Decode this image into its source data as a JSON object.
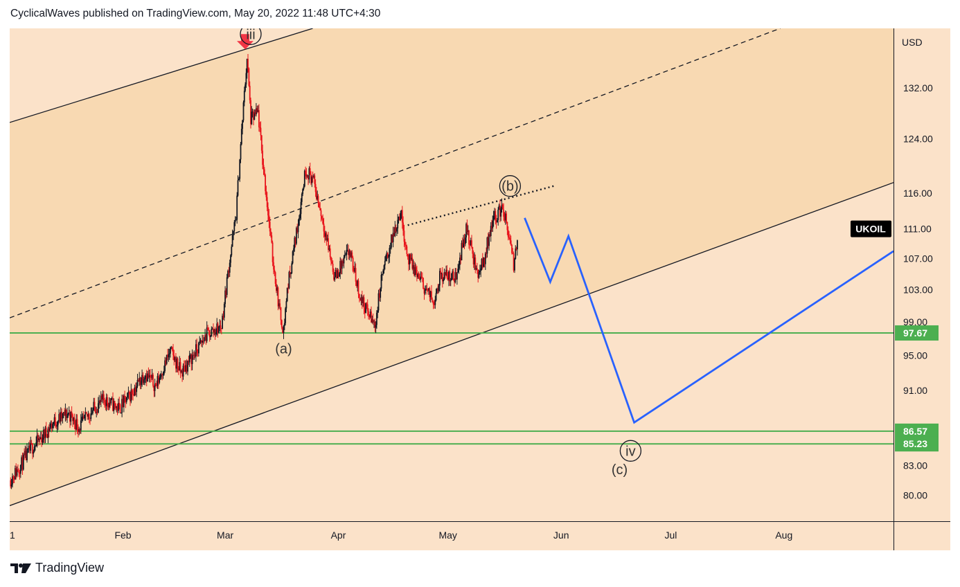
{
  "header": {
    "title": "CyclicalWaves published on TradingView.com, May 20, 2022 11:48 UTC+4:30"
  },
  "footer": {
    "brand": "TradingView"
  },
  "colors": {
    "background": "#fbe2c9",
    "channel_fill": "#f8d9b2",
    "candle_up": "#131722",
    "candle_down": "#e8141c",
    "support_line": "#4caf50",
    "projection": "#2962ff",
    "symbol_badge": "#000000",
    "marker_arrow": "#f23645"
  },
  "icons": {
    "logo": "tradingview-logo-icon",
    "marker": "down-arrow-marker-icon"
  },
  "chart_data": {
    "type": "candlestick",
    "symbol": "UKOIL",
    "currency": "USD",
    "price_ticks": [
      132.0,
      124.0,
      116.0,
      111.0,
      107.0,
      103.0,
      99.0,
      95.0,
      91.0,
      83.0,
      80.0
    ],
    "price_tick_labels": [
      "132.00",
      "124.00",
      "116.00",
      "111.00",
      "107.00",
      "103.00",
      "99.00",
      "95.00",
      "91.00",
      "83.00",
      "80.00"
    ],
    "time_ticks": [
      "1",
      "Feb",
      "Mar",
      "Apr",
      "May",
      "Jun",
      "Jul",
      "Aug"
    ],
    "x_range": [
      "2022-01-01",
      "2022-08-31"
    ],
    "y_range": [
      77.5,
      142
    ],
    "log_scale": true,
    "grid": false,
    "horizontal_levels": [
      {
        "price": 97.67,
        "label": "97.67"
      },
      {
        "price": 86.57,
        "label": "86.57"
      },
      {
        "price": 85.23,
        "label": "85.23"
      }
    ],
    "last_price_label": "UKOIL",
    "last_price": 111.0,
    "price_path": [
      [
        "2022-01-01",
        81.5
      ],
      [
        "2022-01-04",
        83.0
      ],
      [
        "2022-01-07",
        84.8
      ],
      [
        "2022-01-10",
        86.0
      ],
      [
        "2022-01-13",
        87.5
      ],
      [
        "2022-01-17",
        88.5
      ],
      [
        "2022-01-20",
        87.0
      ],
      [
        "2022-01-24",
        89.0
      ],
      [
        "2022-01-27",
        90.0
      ],
      [
        "2022-01-31",
        89.0
      ],
      [
        "2022-02-03",
        90.5
      ],
      [
        "2022-02-07",
        93.0
      ],
      [
        "2022-02-10",
        91.5
      ],
      [
        "2022-02-14",
        95.5
      ],
      [
        "2022-02-17",
        93.0
      ],
      [
        "2022-02-21",
        95.5
      ],
      [
        "2022-02-24",
        97.5
      ],
      [
        "2022-02-28",
        98.5
      ],
      [
        "2022-03-02",
        106.0
      ],
      [
        "2022-03-04",
        113.0
      ],
      [
        "2022-03-07",
        137.0
      ],
      [
        "2022-03-08",
        127.0
      ],
      [
        "2022-03-10",
        128.0
      ],
      [
        "2022-03-11",
        122.0
      ],
      [
        "2022-03-14",
        107.0
      ],
      [
        "2022-03-16",
        100.0
      ],
      [
        "2022-03-17",
        98.0
      ],
      [
        "2022-03-18",
        103.0
      ],
      [
        "2022-03-21",
        112.0
      ],
      [
        "2022-03-23",
        119.5
      ],
      [
        "2022-03-25",
        118.0
      ],
      [
        "2022-03-28",
        111.5
      ],
      [
        "2022-03-31",
        104.5
      ],
      [
        "2022-04-04",
        108.0
      ],
      [
        "2022-04-07",
        102.0
      ],
      [
        "2022-04-11",
        98.5
      ],
      [
        "2022-04-13",
        105.0
      ],
      [
        "2022-04-18",
        113.5
      ],
      [
        "2022-04-20",
        107.0
      ],
      [
        "2022-04-25",
        103.0
      ],
      [
        "2022-04-27",
        101.5
      ],
      [
        "2022-04-29",
        105.0
      ],
      [
        "2022-05-03",
        104.5
      ],
      [
        "2022-05-06",
        111.0
      ],
      [
        "2022-05-09",
        105.0
      ],
      [
        "2022-05-11",
        107.0
      ],
      [
        "2022-05-13",
        112.0
      ],
      [
        "2022-05-16",
        114.0
      ],
      [
        "2022-05-18",
        109.0
      ],
      [
        "2022-05-19",
        106.0
      ],
      [
        "2022-05-20",
        110.0
      ]
    ],
    "channel": {
      "upper_line": [
        [
          "2022-01-01",
          126.5
        ],
        [
          "2022-03-25",
          142.0
        ]
      ],
      "midline_dashed": [
        [
          "2022-01-01",
          99.5
        ],
        [
          "2022-07-31",
          142.0
        ]
      ],
      "lower_line": [
        [
          "2022-01-01",
          79.0
        ],
        [
          "2022-08-31",
          117.5
        ]
      ]
    },
    "b_trendline_dotted": [
      [
        "2022-04-20",
        111.5
      ],
      [
        "2022-05-30",
        117.0
      ]
    ],
    "projection_path": [
      [
        "2022-05-22",
        112.5
      ],
      [
        "2022-05-29",
        104.0
      ],
      [
        "2022-06-03",
        110.0
      ],
      [
        "2022-06-21",
        87.5
      ],
      [
        "2022-08-31",
        108.0
      ]
    ],
    "wave_labels": [
      {
        "text": "iii",
        "date": "2022-03-08",
        "price": 141.0,
        "circled": true
      },
      {
        "text": "(a)",
        "date": "2022-03-17",
        "price": 95.8,
        "circled": false
      },
      {
        "text": "(b)",
        "date": "2022-05-18",
        "price": 117.0,
        "circled": true
      },
      {
        "text": "iv",
        "date": "2022-06-20",
        "price": 84.5,
        "circled": true
      },
      {
        "text": "(c)",
        "date": "2022-06-17",
        "price": 82.6,
        "circled": false
      }
    ]
  }
}
